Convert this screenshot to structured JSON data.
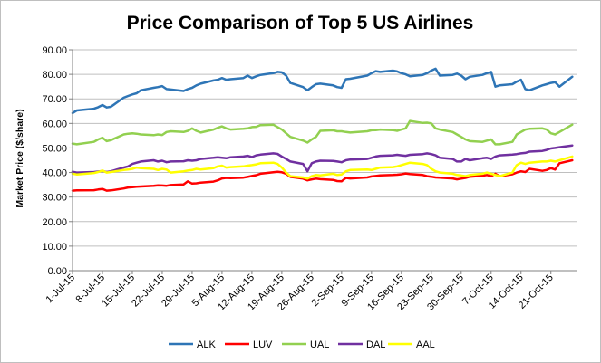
{
  "chart_data": {
    "type": "line",
    "title": "Price Comparison of Top 5 US Airlines",
    "ylabel": "Market  Price ($/share)",
    "xlabel": "",
    "ylim": [
      0,
      90
    ],
    "ytick_labels": [
      "0.00",
      "10.00",
      "20.00",
      "30.00",
      "40.00",
      "50.00",
      "60.00",
      "70.00",
      "80.00",
      "90.00"
    ],
    "grid": "horizontal",
    "legend_position": "bottom",
    "x_tick_labels": [
      "1-Jul-15",
      "8-Jul-15",
      "15-Jul-15",
      "22-Jul-15",
      "29-Jul-15",
      "5-Aug-15",
      "12-Aug-15",
      "19-Aug-15",
      "26-Aug-15",
      "2-Sep-15",
      "9-Sep-15",
      "16-Sep-15",
      "23-Sep-15",
      "30-Sep-15",
      "7-Oct-15",
      "14-Oct-15",
      "21-Oct-15"
    ],
    "x": [
      "1-Jul-15",
      "2-Jul-15",
      "6-Jul-15",
      "7-Jul-15",
      "8-Jul-15",
      "9-Jul-15",
      "10-Jul-15",
      "13-Jul-15",
      "14-Jul-15",
      "15-Jul-15",
      "16-Jul-15",
      "17-Jul-15",
      "20-Jul-15",
      "21-Jul-15",
      "22-Jul-15",
      "23-Jul-15",
      "24-Jul-15",
      "27-Jul-15",
      "28-Jul-15",
      "29-Jul-15",
      "30-Jul-15",
      "31-Jul-15",
      "3-Aug-15",
      "4-Aug-15",
      "5-Aug-15",
      "6-Aug-15",
      "7-Aug-15",
      "10-Aug-15",
      "11-Aug-15",
      "12-Aug-15",
      "13-Aug-15",
      "14-Aug-15",
      "17-Aug-15",
      "18-Aug-15",
      "19-Aug-15",
      "20-Aug-15",
      "21-Aug-15",
      "24-Aug-15",
      "25-Aug-15",
      "26-Aug-15",
      "27-Aug-15",
      "28-Aug-15",
      "31-Aug-15",
      "1-Sep-15",
      "2-Sep-15",
      "3-Sep-15",
      "4-Sep-15",
      "8-Sep-15",
      "9-Sep-15",
      "10-Sep-15",
      "11-Sep-15",
      "14-Sep-15",
      "15-Sep-15",
      "16-Sep-15",
      "17-Sep-15",
      "18-Sep-15",
      "21-Sep-15",
      "22-Sep-15",
      "23-Sep-15",
      "24-Sep-15",
      "25-Sep-15",
      "28-Sep-15",
      "29-Sep-15",
      "30-Sep-15",
      "1-Oct-15",
      "2-Oct-15",
      "5-Oct-15",
      "6-Oct-15",
      "7-Oct-15",
      "8-Oct-15",
      "9-Oct-15",
      "12-Oct-15",
      "13-Oct-15",
      "14-Oct-15",
      "15-Oct-15",
      "16-Oct-15",
      "19-Oct-15",
      "20-Oct-15",
      "21-Oct-15",
      "22-Oct-15",
      "23-Oct-15",
      "26-Oct-15"
    ],
    "series": [
      {
        "name": "ALK",
        "color": "#2e75b6",
        "values": [
          64.2,
          65.3,
          66.0,
          66.6,
          67.5,
          66.5,
          66.8,
          70.5,
          71.2,
          71.8,
          72.3,
          73.5,
          74.5,
          74.8,
          75.2,
          74.0,
          73.8,
          73.2,
          74.0,
          74.5,
          75.5,
          76.2,
          77.5,
          77.8,
          78.5,
          77.8,
          78.0,
          78.5,
          79.5,
          78.5,
          79.2,
          79.8,
          80.5,
          81.0,
          80.8,
          79.5,
          76.5,
          74.8,
          73.5,
          74.8,
          76.0,
          76.2,
          75.5,
          74.8,
          74.5,
          78.0,
          78.2,
          79.5,
          80.5,
          81.3,
          81.0,
          81.5,
          81.2,
          80.5,
          80.0,
          79.2,
          79.8,
          80.5,
          81.5,
          82.3,
          79.5,
          79.8,
          80.3,
          79.5,
          78.0,
          79.0,
          79.8,
          80.5,
          81.0,
          75.0,
          75.5,
          76.0,
          77.0,
          77.8,
          74.0,
          73.5,
          75.5,
          76.0,
          76.5,
          76.8,
          75.0,
          79.0
        ]
      },
      {
        "name": "LUV",
        "color": "#ff0000",
        "values": [
          32.6,
          32.7,
          32.8,
          33.1,
          33.3,
          32.6,
          32.7,
          33.5,
          33.9,
          34.0,
          34.2,
          34.3,
          34.6,
          34.8,
          34.7,
          34.6,
          34.9,
          35.1,
          36.4,
          35.5,
          35.6,
          35.9,
          36.3,
          36.8,
          37.6,
          37.8,
          37.7,
          37.9,
          38.2,
          38.6,
          38.9,
          39.5,
          40.1,
          40.3,
          40.1,
          39.5,
          38.2,
          37.5,
          36.8,
          37.2,
          37.5,
          37.3,
          37.0,
          36.5,
          36.4,
          37.8,
          37.6,
          38.0,
          38.4,
          38.6,
          38.8,
          39.0,
          39.1,
          39.3,
          39.6,
          39.4,
          39.0,
          38.5,
          38.3,
          38.0,
          37.9,
          37.6,
          37.2,
          37.5,
          37.8,
          38.3,
          38.7,
          39.0,
          38.5,
          39.5,
          38.5,
          39.3,
          40.0,
          40.5,
          40.2,
          41.5,
          40.7,
          41.0,
          41.8,
          41.2,
          43.8,
          45.0
        ]
      },
      {
        "name": "UAL",
        "color": "#92d050",
        "values": [
          51.8,
          51.5,
          52.5,
          53.5,
          54.2,
          52.8,
          53.2,
          55.5,
          55.8,
          56.0,
          55.8,
          55.5,
          55.2,
          55.5,
          55.3,
          56.5,
          56.8,
          56.5,
          57.0,
          58.0,
          57.0,
          56.3,
          57.5,
          58.2,
          58.8,
          58.0,
          57.5,
          57.8,
          58.0,
          58.5,
          58.6,
          59.3,
          59.5,
          58.5,
          57.5,
          56.0,
          54.5,
          53.0,
          52.2,
          53.5,
          54.5,
          57.0,
          57.2,
          56.8,
          56.8,
          56.5,
          56.3,
          56.8,
          57.2,
          57.3,
          57.5,
          57.3,
          57.0,
          57.5,
          58.0,
          61.0,
          60.2,
          60.3,
          60.0,
          58.0,
          57.5,
          56.5,
          55.5,
          54.5,
          53.5,
          52.8,
          52.5,
          53.0,
          53.5,
          51.5,
          51.5,
          52.5,
          55.5,
          56.5,
          57.5,
          57.8,
          58.0,
          57.5,
          56.0,
          55.5,
          56.5,
          59.5
        ]
      },
      {
        "name": "DAL",
        "color": "#7030a0",
        "values": [
          40.3,
          40.0,
          40.2,
          40.4,
          40.6,
          40.2,
          40.5,
          42.0,
          42.5,
          43.5,
          44.0,
          44.5,
          45.0,
          44.5,
          44.8,
          44.2,
          44.5,
          44.6,
          45.0,
          44.8,
          45.0,
          45.5,
          46.0,
          46.2,
          46.0,
          45.8,
          46.2,
          46.5,
          46.8,
          46.3,
          47.0,
          47.3,
          47.8,
          47.6,
          46.5,
          45.5,
          44.5,
          43.5,
          40.5,
          43.8,
          44.5,
          44.8,
          44.7,
          44.5,
          44.2,
          45.0,
          45.3,
          45.5,
          46.0,
          46.5,
          46.8,
          47.0,
          47.2,
          47.0,
          46.8,
          47.2,
          47.5,
          47.8,
          47.5,
          47.0,
          46.0,
          45.5,
          44.5,
          44.5,
          45.5,
          45.0,
          45.8,
          46.0,
          45.5,
          46.5,
          47.0,
          47.3,
          47.5,
          47.8,
          48.0,
          48.5,
          48.8,
          49.2,
          49.8,
          50.0,
          50.3,
          51.0
        ]
      },
      {
        "name": "AAL",
        "color": "#ffff00",
        "values": [
          39.5,
          39.2,
          39.8,
          40.2,
          40.8,
          40.0,
          40.2,
          41.0,
          41.2,
          41.5,
          42.0,
          41.8,
          41.5,
          41.0,
          41.5,
          41.2,
          40.0,
          40.5,
          40.8,
          41.0,
          41.5,
          41.2,
          41.8,
          42.5,
          42.8,
          42.0,
          42.2,
          42.5,
          42.8,
          43.0,
          43.3,
          43.8,
          44.0,
          43.5,
          42.0,
          40.0,
          38.5,
          38.0,
          37.5,
          38.5,
          39.0,
          38.8,
          39.5,
          39.0,
          39.2,
          40.5,
          41.0,
          41.2,
          41.0,
          41.5,
          42.0,
          42.2,
          42.5,
          43.0,
          43.5,
          44.0,
          43.5,
          43.0,
          41.5,
          40.5,
          40.0,
          39.5,
          39.0,
          38.8,
          38.5,
          39.0,
          39.5,
          40.0,
          39.5,
          39.0,
          38.5,
          40.0,
          43.0,
          44.0,
          43.5,
          44.0,
          44.5,
          44.5,
          44.8,
          44.5,
          45.0,
          46.5
        ]
      }
    ]
  }
}
